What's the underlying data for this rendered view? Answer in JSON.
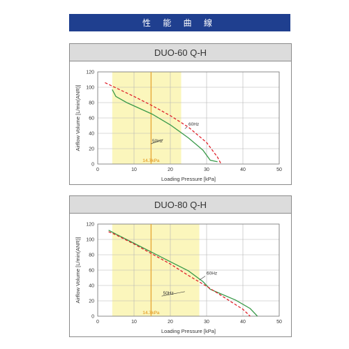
{
  "header": {
    "title": "性 能 曲 線"
  },
  "colors": {
    "banner": "#1f3f8f",
    "band": "#fbf6bc",
    "marker": "#e7a93a",
    "series_50": "#3a9a4a",
    "series_60": "#e0232c"
  },
  "chart_data": [
    {
      "type": "line",
      "title": "DUO-60 Q-H",
      "xlabel": "Loading Pressure [kPa]",
      "ylabel": "Airflow Volume [L/min(ANR)]",
      "xlim": [
        0,
        50
      ],
      "ylim": [
        0,
        120
      ],
      "xticks": [
        0,
        10,
        20,
        30,
        40,
        50
      ],
      "yticks": [
        0,
        20,
        40,
        60,
        80,
        100,
        120
      ],
      "grid": true,
      "highlight_band": [
        4,
        23
      ],
      "marker_line": {
        "x": 14.7,
        "label": "14.7kPa"
      },
      "series": [
        {
          "name": "50Hz",
          "points": [
            [
              4,
              97
            ],
            [
              5,
              88
            ],
            [
              8,
              80
            ],
            [
              15,
              65
            ],
            [
              20,
              51
            ],
            [
              25,
              34
            ],
            [
              28,
              22
            ],
            [
              29,
              18
            ],
            [
              31,
              5
            ],
            [
              33,
              3
            ]
          ]
        },
        {
          "name": "60Hz",
          "points": [
            [
              2,
              106
            ],
            [
              6,
              97
            ],
            [
              10,
              88
            ],
            [
              15,
              76
            ],
            [
              20,
              63
            ],
            [
              25,
              48
            ],
            [
              30,
              28
            ],
            [
              33,
              9
            ],
            [
              34,
              0
            ]
          ]
        }
      ]
    },
    {
      "type": "line",
      "title": "DUO-80 Q-H",
      "xlabel": "Loading Pressure [kPa]",
      "ylabel": "Airflow Volume [L/min(ANR)]",
      "xlim": [
        0,
        50
      ],
      "ylim": [
        0,
        120
      ],
      "xticks": [
        0,
        10,
        20,
        30,
        40,
        50
      ],
      "yticks": [
        0,
        20,
        40,
        60,
        80,
        100,
        120
      ],
      "grid": true,
      "highlight_band": [
        4,
        28
      ],
      "marker_line": {
        "x": 14.7,
        "label": "14.7kPa"
      },
      "series": [
        {
          "name": "50Hz",
          "points": [
            [
              3,
              112
            ],
            [
              5,
              107
            ],
            [
              10,
              95
            ],
            [
              15,
              83
            ],
            [
              20,
              71
            ],
            [
              25,
              59
            ],
            [
              29,
              45
            ],
            [
              31,
              35
            ],
            [
              34,
              29
            ],
            [
              38,
              21
            ],
            [
              42,
              10
            ],
            [
              44,
              0
            ]
          ]
        },
        {
          "name": "60Hz",
          "points": [
            [
              3,
              110
            ],
            [
              5,
              106
            ],
            [
              10,
              94
            ],
            [
              15,
              81
            ],
            [
              20,
              68
            ],
            [
              25,
              53
            ],
            [
              30,
              39
            ],
            [
              35,
              24
            ],
            [
              40,
              9
            ],
            [
              42,
              0
            ]
          ]
        }
      ]
    }
  ]
}
